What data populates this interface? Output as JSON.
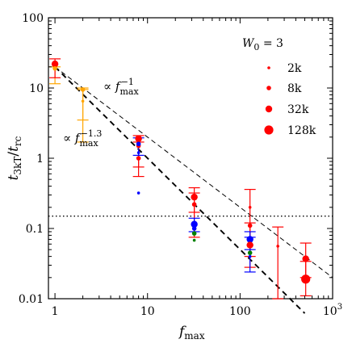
{
  "chart_data": {
    "type": "scatter",
    "xlabel": "f_max",
    "ylabel": "t_3kT/t_rc",
    "xscale": "log",
    "yscale": "log",
    "xlim": [
      0.85,
      1000
    ],
    "ylim": [
      0.01,
      100
    ],
    "x_ticks": [
      {
        "value": 1,
        "label": "1"
      },
      {
        "value": 10,
        "label": "10"
      },
      {
        "value": 100,
        "label": "100"
      },
      {
        "value": 1000,
        "label": "10",
        "exp": "3"
      }
    ],
    "y_ticks": [
      {
        "value": 0.01,
        "label": "0.01"
      },
      {
        "value": 0.1,
        "label": "0.1"
      },
      {
        "value": 1,
        "label": "1"
      },
      {
        "value": 10,
        "label": "10"
      },
      {
        "value": 100,
        "label": "100"
      }
    ],
    "legend": {
      "title": "W",
      "title_sub": "0",
      "title_rest": " = 3",
      "placement": "top-right",
      "entries": [
        "2k",
        "8k",
        "32k",
        "128k"
      ]
    },
    "annotations": [
      {
        "id": "slope1",
        "prefix": "∝ f",
        "sub": "max",
        "sup": "−1"
      },
      {
        "id": "slope13",
        "prefix": "∝ f",
        "sub": "max",
        "sup": "−1.3"
      }
    ],
    "horizontal_line": {
      "y": 0.15,
      "style": "dotted"
    },
    "fit_lines": [
      {
        "name": "∝ f_max^-1",
        "style": "thin-dashed",
        "x": [
          1,
          1000
        ],
        "y": [
          20,
          0.02
        ]
      },
      {
        "name": "∝ f_max^-1.3",
        "style": "thick-dashed",
        "x": [
          1,
          500
        ],
        "y": [
          20,
          0.0062
        ]
      }
    ],
    "points": [
      {
        "x": 1,
        "y": 22,
        "color": "#ff0000",
        "size": "32k"
      },
      {
        "x": 1,
        "y": 19,
        "color": "#ffa500",
        "size": "8k"
      },
      {
        "x": 2,
        "y": 9.5,
        "color": "#ffa500",
        "size": "8k"
      },
      {
        "x": 2,
        "y": 6.5,
        "color": "#ffa500",
        "size": "2k"
      },
      {
        "x": 8,
        "y": 1.9,
        "color": "#ff0000",
        "size": "32k"
      },
      {
        "x": 8,
        "y": 1.5,
        "color": "#ff0000",
        "size": "8k"
      },
      {
        "x": 8,
        "y": 1.0,
        "color": "#ff0000",
        "size": "8k"
      },
      {
        "x": 8,
        "y": 1.6,
        "color": "#0000ff",
        "size": "8k"
      },
      {
        "x": 8,
        "y": 1.2,
        "color": "#0000ff",
        "size": "2k"
      },
      {
        "x": 8,
        "y": 0.32,
        "color": "#0000ff",
        "size": "2k"
      },
      {
        "x": 32,
        "y": 0.28,
        "color": "#ff0000",
        "size": "32k"
      },
      {
        "x": 32,
        "y": 0.22,
        "color": "#ff0000",
        "size": "8k"
      },
      {
        "x": 32,
        "y": 0.115,
        "color": "#0000ff",
        "size": "32k"
      },
      {
        "x": 32,
        "y": 0.1,
        "color": "#0000ff",
        "size": "8k"
      },
      {
        "x": 32,
        "y": 0.085,
        "color": "#008000",
        "size": "8k"
      },
      {
        "x": 32,
        "y": 0.068,
        "color": "#008000",
        "size": "2k"
      },
      {
        "x": 128,
        "y": 0.2,
        "color": "#ff0000",
        "size": "2k"
      },
      {
        "x": 128,
        "y": 0.11,
        "color": "#ff0000",
        "size": "8k"
      },
      {
        "x": 128,
        "y": 0.07,
        "color": "#0000ff",
        "size": "32k"
      },
      {
        "x": 128,
        "y": 0.058,
        "color": "#ff0000",
        "size": "32k"
      },
      {
        "x": 128,
        "y": 0.045,
        "color": "#008000",
        "size": "8k"
      },
      {
        "x": 128,
        "y": 0.04,
        "color": "#0000ff",
        "size": "2k"
      },
      {
        "x": 256,
        "y": 0.056,
        "color": "#ff0000",
        "size": "2k"
      },
      {
        "x": 512,
        "y": 0.037,
        "color": "#ff0000",
        "size": "32k"
      },
      {
        "x": 512,
        "y": 0.019,
        "color": "#ff0000",
        "size": "128k"
      }
    ],
    "error_bars": [
      {
        "x": 1,
        "low": 11.5,
        "high": 20,
        "color": "#ffa500"
      },
      {
        "x": 1,
        "low": 14,
        "high": 26,
        "color": "#ff0000"
      },
      {
        "x": 2,
        "low": 1.7,
        "high": 10,
        "color": "#ffa500"
      },
      {
        "x": 2,
        "low": 3.5,
        "high": 9.5,
        "color": "#ffa500"
      },
      {
        "x": 8,
        "low": 0.75,
        "high": 2.1,
        "color": "#ff0000"
      },
      {
        "x": 8,
        "low": 0.55,
        "high": 1.7,
        "color": "#ff0000"
      },
      {
        "x": 8,
        "low": 1.1,
        "high": 1.95,
        "color": "#0000ff"
      },
      {
        "x": 32,
        "low": 0.17,
        "high": 0.38,
        "color": "#ff0000"
      },
      {
        "x": 32,
        "low": 0.075,
        "high": 0.32,
        "color": "#ff0000"
      },
      {
        "x": 32,
        "low": 0.09,
        "high": 0.14,
        "color": "#0000ff"
      },
      {
        "x": 128,
        "low": 0.04,
        "high": 0.36,
        "color": "#ff0000"
      },
      {
        "x": 128,
        "low": 0.028,
        "high": 0.12,
        "color": "#ff0000"
      },
      {
        "x": 128,
        "low": 0.05,
        "high": 0.09,
        "color": "#0000ff"
      },
      {
        "x": 128,
        "low": 0.024,
        "high": 0.075,
        "color": "#0000ff"
      },
      {
        "x": 256,
        "low": 0.01,
        "high": 0.105,
        "color": "#ff0000"
      },
      {
        "x": 512,
        "low": 0.02,
        "high": 0.062,
        "color": "#ff0000"
      },
      {
        "x": 512,
        "low": 0.011,
        "high": 0.034,
        "color": "#ff0000"
      }
    ],
    "grid": false
  }
}
